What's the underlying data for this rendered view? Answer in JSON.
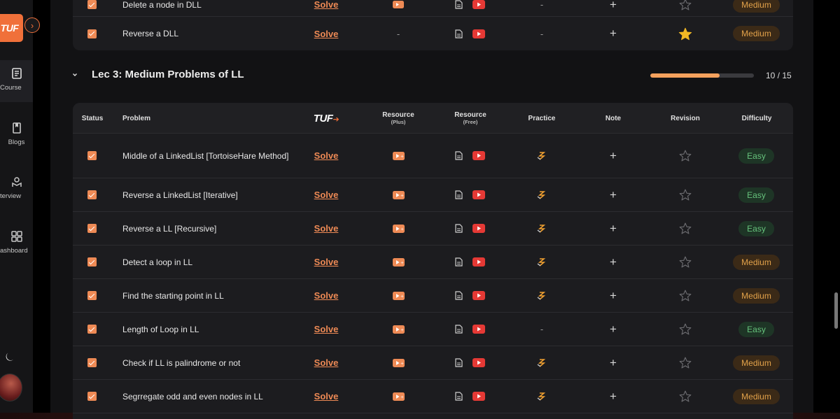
{
  "sidebar": {
    "logo": "TUF",
    "items": [
      {
        "label": "Course",
        "icon": "book-icon",
        "active": true
      },
      {
        "label": "Blogs",
        "icon": "bookmark-icon",
        "active": false
      },
      {
        "label": "terview",
        "icon": "interview-icon",
        "active": false
      },
      {
        "label": "ashboard",
        "icon": "dashboard-icon",
        "active": false
      }
    ]
  },
  "previous_section": {
    "rows": [
      {
        "problem": "Delete a node in DLL",
        "solve": "Solve",
        "plus": "yt",
        "practice": "-",
        "revision_starred": false,
        "difficulty": "Medium"
      },
      {
        "problem": "Reverse a DLL",
        "solve": "Solve",
        "plus": "-",
        "practice": "-",
        "revision_starred": true,
        "difficulty": "Medium"
      }
    ]
  },
  "section": {
    "title": "Lec 3: Medium Problems of LL",
    "progress_text": "10 / 15",
    "progress_fraction": 0.667
  },
  "table": {
    "headers": {
      "status": "Status",
      "problem": "Problem",
      "tuf": "TUF",
      "resource": "Resource",
      "plus": "(Plus)",
      "free": "(Free)",
      "practice": "Practice",
      "note": "Note",
      "revision": "Revision",
      "difficulty": "Difficulty"
    },
    "rows": [
      {
        "problem": "Middle of a LinkedList [TortoiseHare Method]",
        "solve": "Solve",
        "practice": "icon",
        "difficulty": "Easy"
      },
      {
        "problem": "Reverse a LinkedList [Iterative]",
        "solve": "Solve",
        "practice": "icon",
        "difficulty": "Easy"
      },
      {
        "problem": "Reverse a LL [Recursive]",
        "solve": "Solve",
        "practice": "icon",
        "difficulty": "Easy"
      },
      {
        "problem": "Detect a loop in LL",
        "solve": "Solve",
        "practice": "icon",
        "difficulty": "Medium"
      },
      {
        "problem": "Find the starting point in LL",
        "solve": "Solve",
        "practice": "icon",
        "difficulty": "Medium"
      },
      {
        "problem": "Length of Loop in LL",
        "solve": "Solve",
        "practice": "-",
        "difficulty": "Easy"
      },
      {
        "problem": "Check if LL is palindrome or not",
        "solve": "Solve",
        "practice": "icon",
        "difficulty": "Medium"
      },
      {
        "problem": "Segrregate odd and even nodes in LL",
        "solve": "Solve",
        "practice": "icon",
        "difficulty": "Medium"
      }
    ]
  },
  "colors": {
    "accent": "#ee8a55",
    "easy": "#66c27c",
    "medium": "#e3a24a",
    "star": "#f2b824",
    "youtube": "#e53935"
  }
}
